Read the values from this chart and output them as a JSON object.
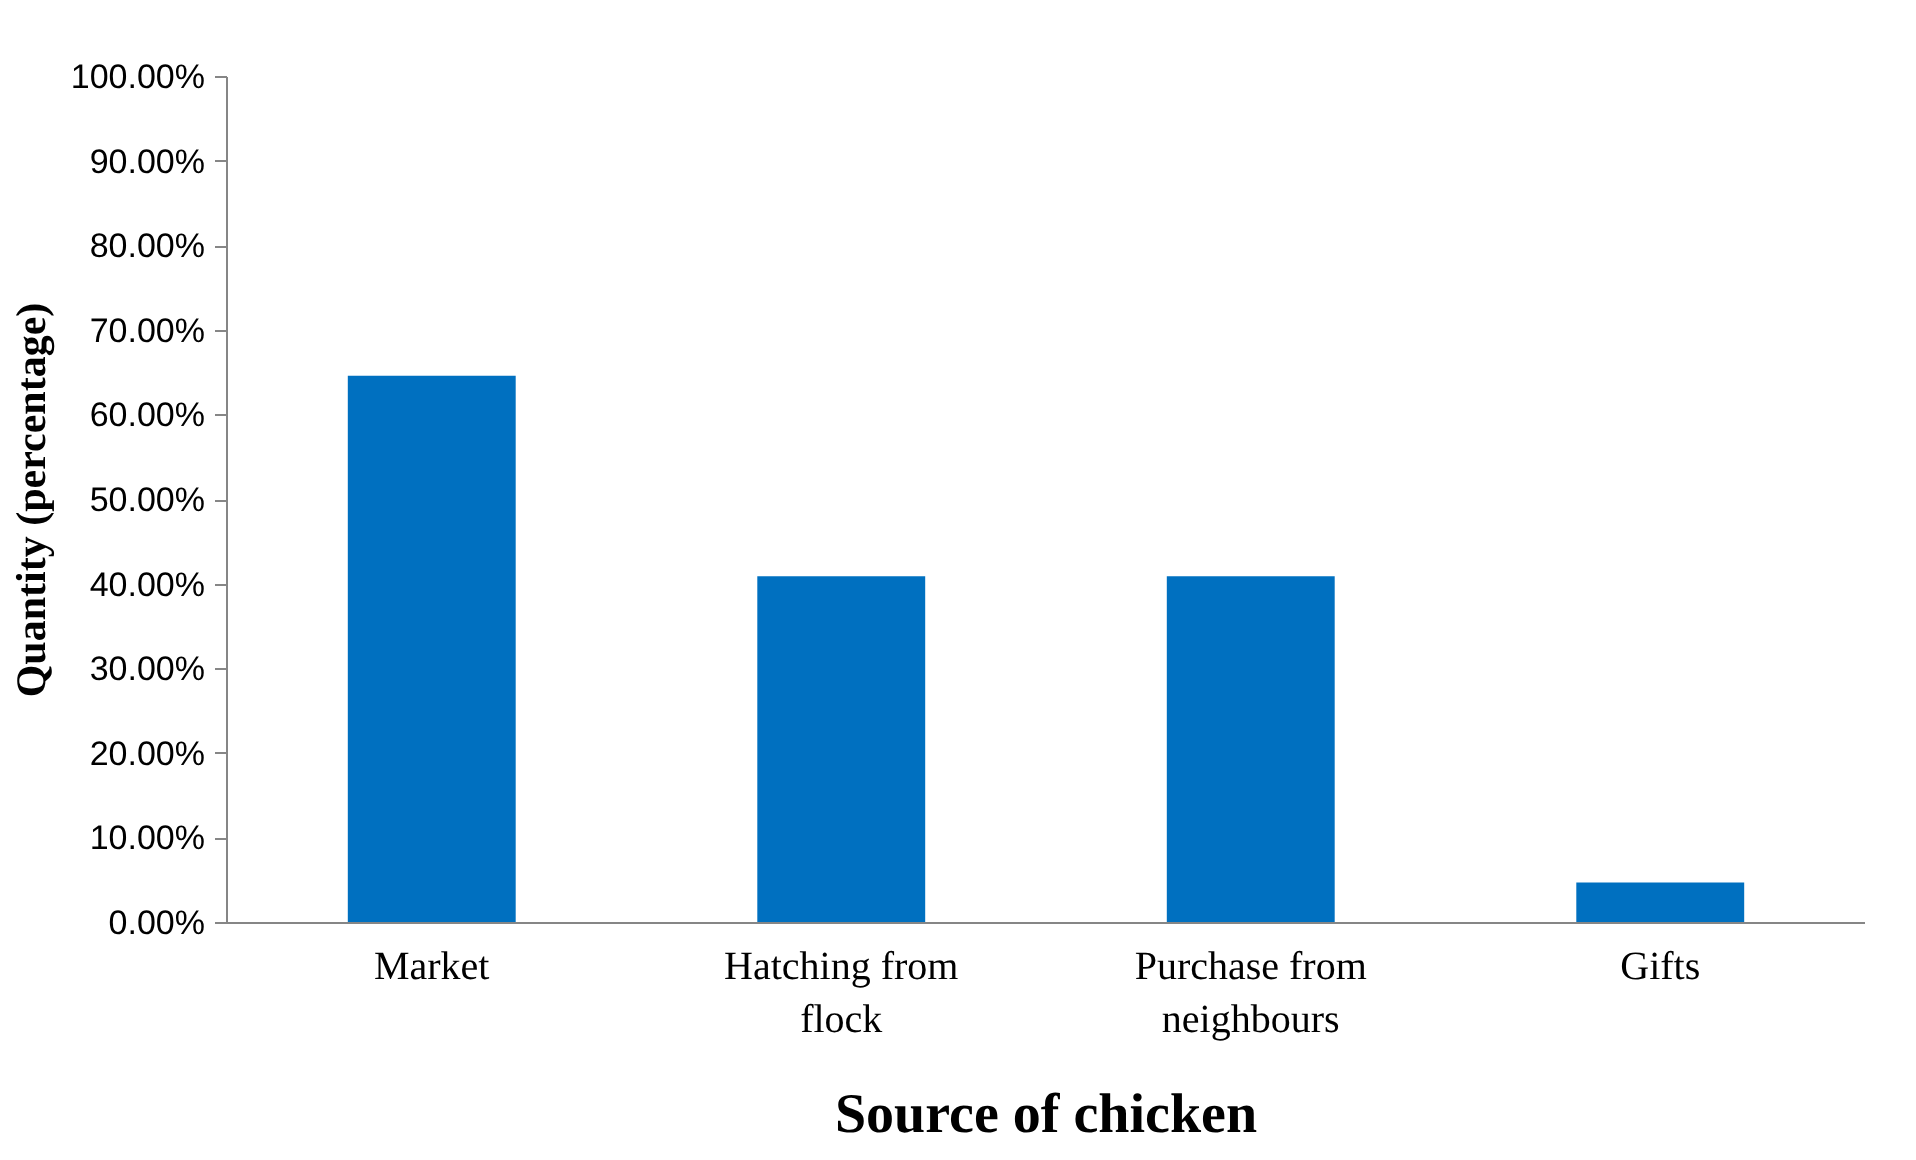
{
  "chart_data": {
    "type": "bar",
    "categories": [
      "Market",
      "Hatching from flock",
      "Purchase from neighbours",
      "Gifts"
    ],
    "values": [
      64.7,
      41.0,
      41.0,
      4.8
    ],
    "color": "#0070c0",
    "xlabel": "Source of chicken",
    "ylabel": "Quantity (percentage)",
    "ylim": [
      0,
      100
    ],
    "yticks": [
      {
        "value": 0,
        "label": "0.00%"
      },
      {
        "value": 10,
        "label": "10.00%"
      },
      {
        "value": 20,
        "label": "20.00%"
      },
      {
        "value": 30,
        "label": "30.00%"
      },
      {
        "value": 40,
        "label": "40.00%"
      },
      {
        "value": 50,
        "label": "50.00%"
      },
      {
        "value": 60,
        "label": "60.00%"
      },
      {
        "value": 70,
        "label": "70.00%"
      },
      {
        "value": 80,
        "label": "80.00%"
      },
      {
        "value": 90,
        "label": "90.00%"
      },
      {
        "value": 100,
        "label": "100.00%"
      }
    ],
    "grid": false
  }
}
